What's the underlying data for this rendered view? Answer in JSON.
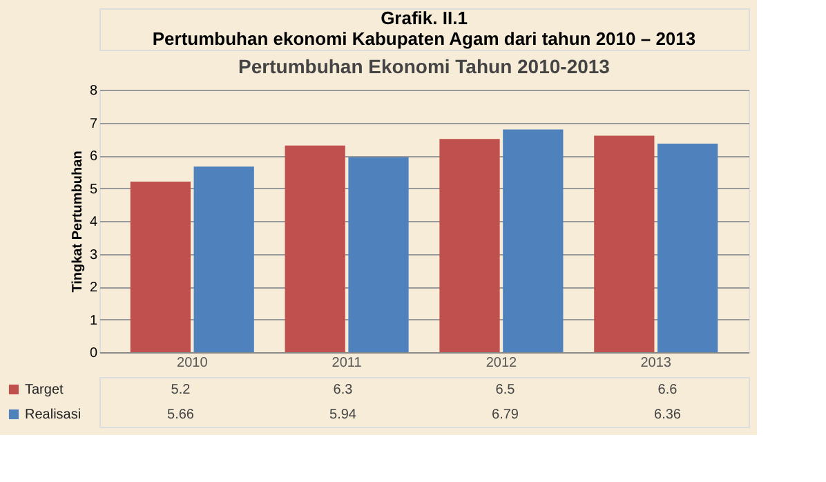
{
  "chart_data": {
    "type": "bar",
    "title": "Pertumbuhan Ekonomi Tahun 2010-2013",
    "ylabel": "Tingkat Pertumbuhan",
    "annotations": [
      "Grafik. II.1",
      "Pertumbuhan ekonomi Kabupaten Agam dari tahun 2010 – 2013"
    ],
    "categories": [
      "2010",
      "2011",
      "2012",
      "2013"
    ],
    "series": [
      {
        "name": "Target",
        "color": "#c0504d",
        "values": [
          5.2,
          6.3,
          6.5,
          6.6
        ]
      },
      {
        "name": "Realisasi",
        "color": "#4f81bd",
        "values": [
          5.66,
          5.94,
          6.79,
          6.36
        ]
      }
    ],
    "ylim": [
      0,
      8
    ],
    "yticks": [
      0,
      1,
      2,
      3,
      4,
      5,
      6,
      7,
      8
    ],
    "grid": "y",
    "legend": "bottom",
    "data_labels": true
  }
}
